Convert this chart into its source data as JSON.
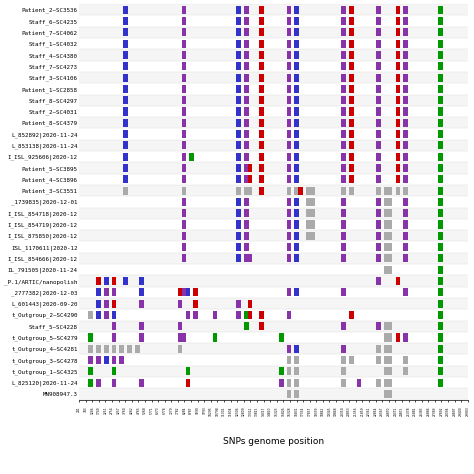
{
  "sample_names": [
    "Patient_2~SC3536",
    "Staff_6~SC4235",
    "Patient_7~SC4062",
    "Staff_1~SC4032",
    "Staff_4~SC4380",
    "Staff_7~SC4273",
    "Staff_3~SC4106",
    "Patient_1~SC2858",
    "Staff_8~SC4297",
    "Staff_2~SC4031",
    "Patient_8~SC4379",
    "L_852892|2020-11-24",
    "L_853138|2020-11-24",
    "I_ISL_925606|2020-12",
    "Patient_5~SC3895",
    "Patient_4~SC3896",
    "Patient_3~SC3551",
    "_1739835|2020-12-01",
    "I_ISL_854718|2020-12",
    "I_ISL_854719|2020-12",
    "I_ISL_875850|2020-12",
    "ISL_1170611|2020-12",
    "I_ISL_854666|2020-12",
    "IL_791505|2020-11-24",
    "_P.1/ARTIC/nanopolish",
    "_2777382|2020-12-03",
    "L_601443|2020-09-20",
    "t_Outgroup_2~SC4290",
    "Staff_5~SC4228",
    "t_Outgroup_5~SC4279",
    "t_Outgroup_4~SC4281",
    "t_Outgroup_3~SC4278",
    "t_Outgroup_1~SC4325",
    "L_825120|2020-11-24",
    "MN908947.3"
  ],
  "colors": {
    "blue": "#3333CC",
    "purple": "#8833AA",
    "red": "#CC0000",
    "green": "#009900",
    "gray": "#AAAAAA"
  },
  "xlabel": "SNPs genome position",
  "background_color": "#ffffff"
}
